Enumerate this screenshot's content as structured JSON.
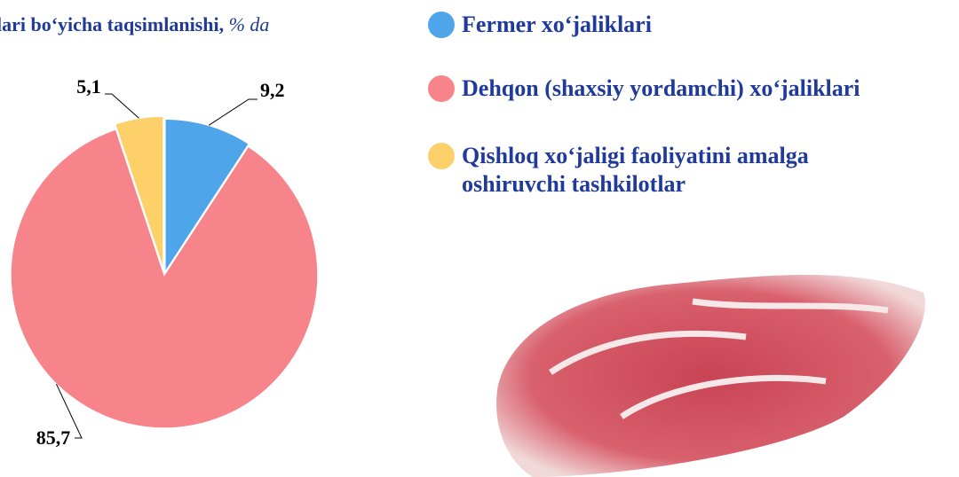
{
  "chart_data": {
    "type": "pie",
    "title": "lari bo‘yicha taqsimlanishi,",
    "unit": "% da",
    "categories": [
      "Fermer xo‘jaliklari",
      "Dehqon (shaxsiy yordamchi) xo‘jaliklari",
      "Qishloq xo‘jaligi faoliyatini amalga oshiruvchi tashkilotlar"
    ],
    "values": [
      9.2,
      85.7,
      5.1
    ],
    "value_labels": [
      "9,2",
      "85,7",
      "5,1"
    ],
    "colors": [
      "#4ea5ea",
      "#f7838b",
      "#fdd06a"
    ]
  }
}
